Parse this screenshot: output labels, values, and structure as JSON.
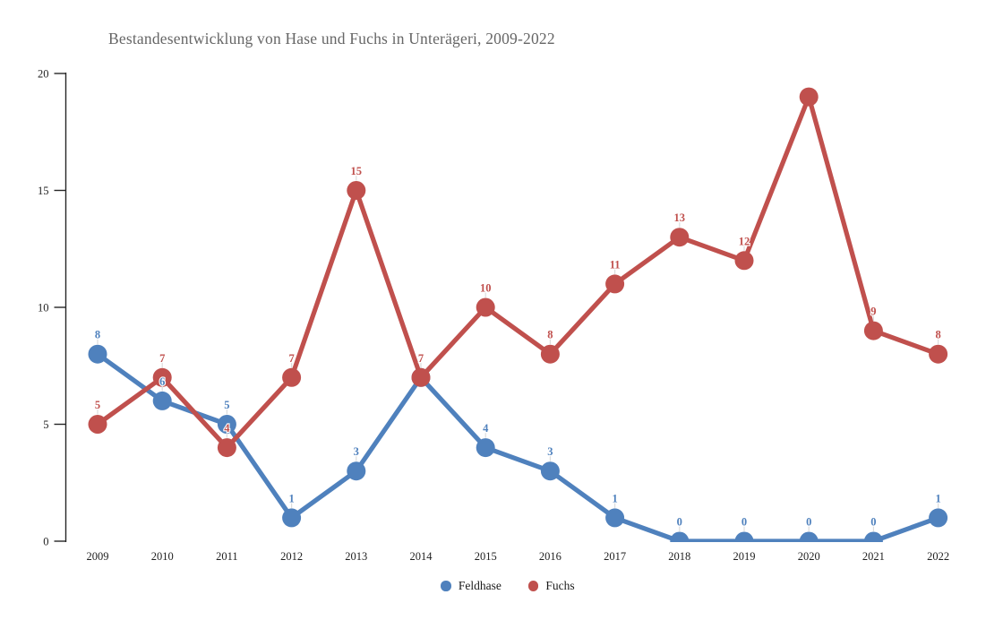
{
  "chart_data": {
    "type": "line",
    "title": "Bestandesentwicklung von Hase und Fuchs in Unterägeri, 2009-2022",
    "x": [
      2009,
      2010,
      2011,
      2012,
      2013,
      2014,
      2015,
      2016,
      2017,
      2018,
      2019,
      2020,
      2021,
      2022
    ],
    "series": [
      {
        "name": "Feldhase",
        "color": "#4F81BD",
        "values": [
          8,
          6,
          5,
          1,
          3,
          7,
          4,
          3,
          1,
          0,
          0,
          0,
          0,
          1
        ]
      },
      {
        "name": "Fuchs",
        "color": "#C0504D",
        "values": [
          5,
          7,
          4,
          7,
          15,
          7,
          10,
          8,
          11,
          13,
          12,
          19,
          9,
          8
        ]
      }
    ],
    "ylim": [
      0,
      20
    ],
    "yticks": [
      0,
      5,
      10,
      15,
      20
    ],
    "xlabel": "",
    "ylabel": "",
    "grid": false,
    "legend_position": "bottom",
    "data_labels": true,
    "hidden_labels": [
      {
        "series": "Feldhase",
        "x": 2014
      },
      {
        "series": "Fuchs",
        "x": 2020
      }
    ]
  },
  "styles": {
    "background": "#ffffff",
    "title_color": "#666666",
    "axis_color": "#262626",
    "tick_label_color": "#1f1f1f",
    "leader_line_color": "#dcdcdc",
    "label_halo": "#ffffff"
  }
}
